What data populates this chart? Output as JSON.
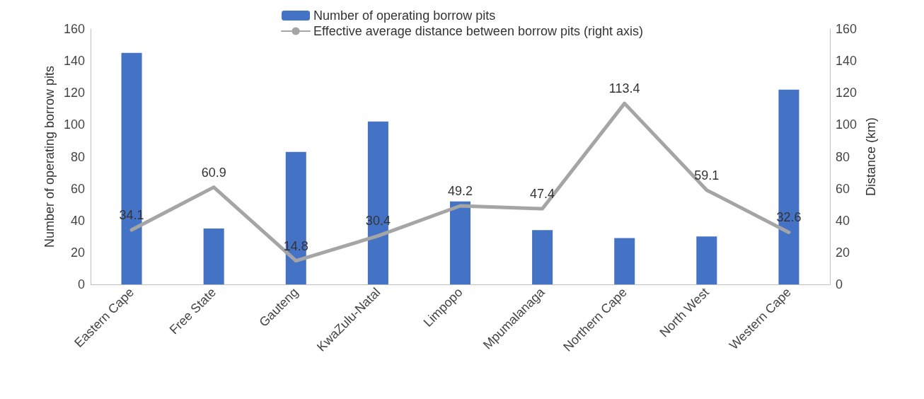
{
  "chart_data": {
    "type": "bar",
    "ylabel": "Number of operating borrow pits",
    "y2label": "Distance (km)",
    "categories": [
      "Eastern Cape",
      "Free State",
      "Gauteng",
      "KwaZulu-Natal",
      "Limpopo",
      "Mpumalanaga",
      "Northern Cape",
      "North West",
      "Western Cape"
    ],
    "series": [
      {
        "name": "Number of operating borrow pits",
        "color": "#4472c4",
        "values": [
          145,
          35,
          83,
          102,
          52,
          34,
          29,
          30,
          122
        ]
      },
      {
        "name": "Effective average distance between borrow pits (right axis)",
        "type": "line",
        "axis": "y2",
        "color": "#a5a5a5",
        "marker": "none",
        "line_style": "solid",
        "values": [
          34.1,
          60.9,
          14.8,
          30.4,
          49.2,
          47.4,
          113.4,
          59.1,
          32.6
        ],
        "value_labels": [
          "34.1",
          "60.9",
          "14.8",
          "30.4",
          "49.2",
          "47.4",
          "113.4",
          "59.1",
          "32.6"
        ]
      }
    ],
    "ylim": [
      0,
      160
    ],
    "yticks": [
      0,
      20,
      40,
      60,
      80,
      100,
      120,
      140,
      160
    ],
    "y2lim": [
      0,
      160
    ],
    "y2ticks": [
      0,
      20,
      40,
      60,
      80,
      100,
      120,
      140,
      160
    ],
    "grid": false,
    "legend": "top"
  }
}
